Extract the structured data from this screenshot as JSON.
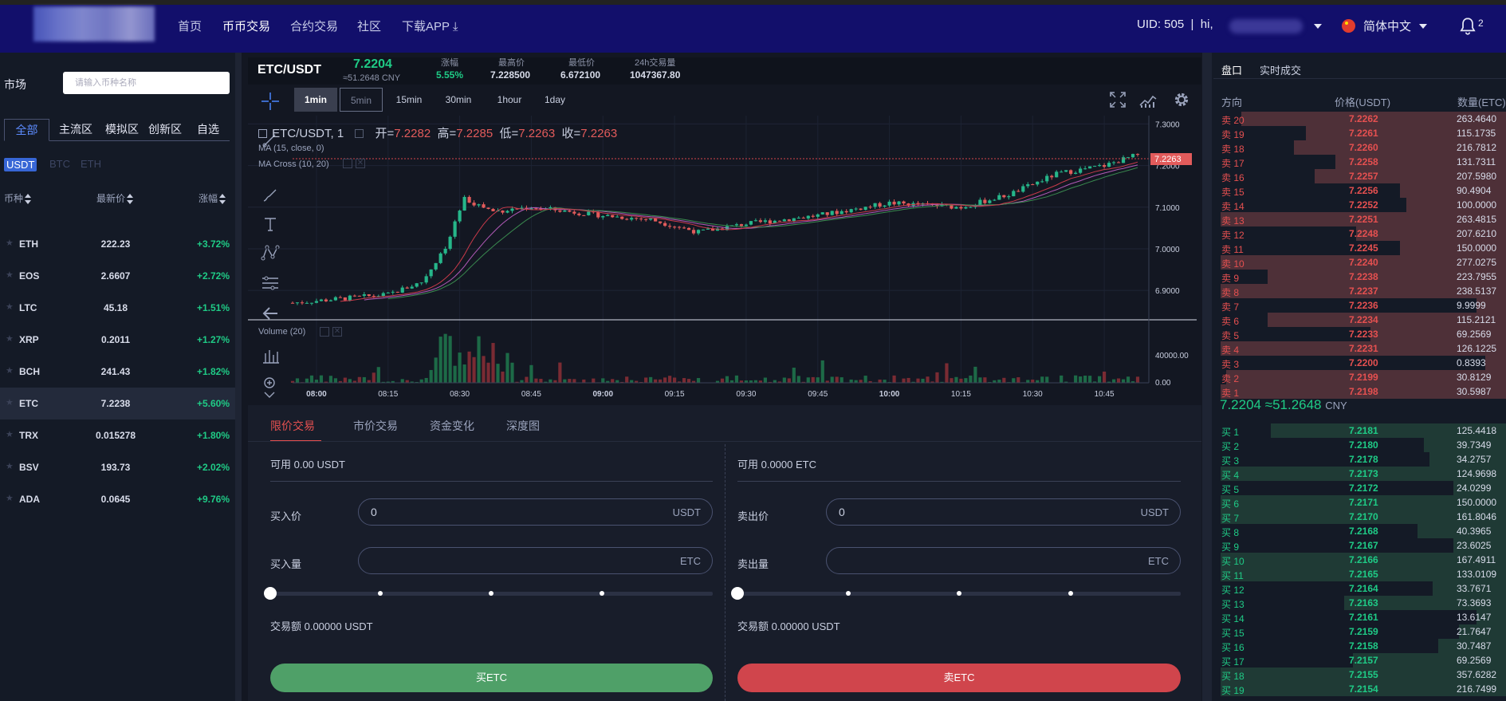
{
  "nav": {
    "links": [
      "首页",
      "币币交易",
      "合约交易",
      "社区",
      "下载APP"
    ],
    "uid_text": "UID: 505",
    "greeting": "hi,",
    "language": "简体中文",
    "notification_count": "2"
  },
  "market": {
    "label": "市场",
    "search_placeholder": "请输入币种名称",
    "zones": [
      "全部",
      "主流区",
      "模拟区",
      "创新区",
      "自选"
    ],
    "quotes": [
      "USDT",
      "BTC",
      "ETH"
    ],
    "col_coin": "币种",
    "col_price": "最新价",
    "col_change": "涨幅",
    "coins": [
      {
        "name": "ETH",
        "price": "222.23",
        "change": "+3.72%"
      },
      {
        "name": "EOS",
        "price": "2.6607",
        "change": "+2.72%"
      },
      {
        "name": "LTC",
        "price": "45.18",
        "change": "+1.51%"
      },
      {
        "name": "XRP",
        "price": "0.2011",
        "change": "+1.27%"
      },
      {
        "name": "BCH",
        "price": "241.43",
        "change": "+1.82%"
      },
      {
        "name": "ETC",
        "price": "7.2238",
        "change": "+5.60%"
      },
      {
        "name": "TRX",
        "price": "0.015278",
        "change": "+1.80%"
      },
      {
        "name": "BSV",
        "price": "193.73",
        "change": "+2.02%"
      },
      {
        "name": "ADA",
        "price": "0.0645",
        "change": "+9.76%"
      }
    ]
  },
  "ticker": {
    "pair": "ETC/USDT",
    "last": "7.2204",
    "cny": "≈51.2648 CNY",
    "stats": [
      {
        "label": "涨幅",
        "value": "5.55%"
      },
      {
        "label": "最高价",
        "value": "7.228500"
      },
      {
        "label": "最低价",
        "value": "6.672100"
      },
      {
        "label": "24h交易量",
        "value": "1047367.80"
      }
    ]
  },
  "chart": {
    "timeframes": [
      "1min",
      "5min",
      "15min",
      "30min",
      "1hour",
      "1day"
    ],
    "legend_symbol": "ETC/USDT, 1",
    "ohlc": {
      "o_label": "开=",
      "o": "7.2282",
      "h_label": "高=",
      "h": "7.2285",
      "l_label": "低=",
      "l": "7.2263",
      "c_label": "收=",
      "c": "7.2263"
    },
    "ma_label": "MA (15, close, 0)",
    "macross_label": "MA Cross (10, 20)",
    "volume_label": "Volume (20)",
    "current_price_tag": "7.2263",
    "price_axis": [
      "7.3000",
      "7.2000",
      "7.1000",
      "7.0000",
      "6.9000"
    ],
    "volume_axis": [
      "40000.00",
      "0.00"
    ],
    "time_axis": [
      "08:00",
      "08:15",
      "08:30",
      "08:45",
      "09:00",
      "09:15",
      "09:30",
      "09:45",
      "10:00",
      "10:15",
      "10:30",
      "10:45"
    ],
    "up_color": "#26b68a",
    "down_color": "#e25b5b"
  },
  "chart_data": {
    "type": "candlestick",
    "x_label": "",
    "y_label": "",
    "ylim": [
      6.86,
      7.32
    ],
    "x_range": [
      "07:55",
      "10:52"
    ],
    "interval": "1min",
    "price_trend": [
      [
        "07:55",
        6.87
      ],
      [
        "08:05",
        6.88
      ],
      [
        "08:15",
        6.89
      ],
      [
        "08:22",
        6.92
      ],
      [
        "08:27",
        7.0
      ],
      [
        "08:31",
        7.12
      ],
      [
        "08:37",
        7.09
      ],
      [
        "08:45",
        7.1
      ],
      [
        "09:00",
        7.08
      ],
      [
        "09:10",
        7.07
      ],
      [
        "09:20",
        7.04
      ],
      [
        "09:30",
        7.06
      ],
      [
        "09:45",
        7.08
      ],
      [
        "10:00",
        7.11
      ],
      [
        "10:15",
        7.1
      ],
      [
        "10:25",
        7.13
      ],
      [
        "10:35",
        7.18
      ],
      [
        "10:45",
        7.2
      ],
      [
        "10:52",
        7.2263
      ]
    ]
  },
  "form": {
    "tabs": [
      "限价交易",
      "市价交易",
      "资金变化",
      "深度图"
    ],
    "buy": {
      "available": "可用 0.00 USDT",
      "price_label": "买入价",
      "price_value": "0",
      "price_unit": "USDT",
      "amount_label": "买入量",
      "amount_unit": "ETC",
      "total": "交易额 0.00000 USDT",
      "button": "买ETC"
    },
    "sell": {
      "available": "可用 0.0000 ETC",
      "price_label": "卖出价",
      "price_value": "0",
      "price_unit": "USDT",
      "amount_label": "卖出量",
      "amount_unit": "ETC",
      "total": "交易额 0.00000 USDT",
      "button": "卖ETC"
    }
  },
  "orderbook": {
    "tabs": [
      "盘口",
      "实时成交"
    ],
    "col_dir": "方向",
    "col_price": "价格(USDT)",
    "col_qty": "数量(ETC)",
    "asks": [
      {
        "label": "卖 20",
        "price": "7.2262",
        "qty": "263.4640",
        "depth": 0.9
      },
      {
        "label": "卖 19",
        "price": "7.2261",
        "qty": "115.1735",
        "depth": 0.68
      },
      {
        "label": "卖 18",
        "price": "7.2260",
        "qty": "216.7812",
        "depth": 0.72
      },
      {
        "label": "卖 17",
        "price": "7.2258",
        "qty": "131.7311",
        "depth": 0.58
      },
      {
        "label": "卖 16",
        "price": "7.2257",
        "qty": "207.5980",
        "depth": 0.65
      },
      {
        "label": "卖 15",
        "price": "7.2256",
        "qty": "90.4904",
        "depth": 0.36
      },
      {
        "label": "卖 14",
        "price": "7.2252",
        "qty": "100.0000",
        "depth": 0.34
      },
      {
        "label": "卖 13",
        "price": "7.2251",
        "qty": "263.4815",
        "depth": 0.97
      },
      {
        "label": "卖 12",
        "price": "7.2248",
        "qty": "207.6210",
        "depth": 0.51
      },
      {
        "label": "卖 11",
        "price": "7.2245",
        "qty": "150.0000",
        "depth": 0.36
      },
      {
        "label": "卖 10",
        "price": "7.2240",
        "qty": "277.0275",
        "depth": 0.97
      },
      {
        "label": "卖 9",
        "price": "7.2238",
        "qty": "223.7955",
        "depth": 0.81
      },
      {
        "label": "卖 8",
        "price": "7.2237",
        "qty": "238.5137",
        "depth": 0.97
      },
      {
        "label": "卖 7",
        "price": "7.2236",
        "qty": "9.9999",
        "depth": 0.1
      },
      {
        "label": "卖 6",
        "price": "7.2234",
        "qty": "115.2121",
        "depth": 0.81
      },
      {
        "label": "卖 5",
        "price": "7.2233",
        "qty": "69.2569",
        "depth": 0.46
      },
      {
        "label": "卖 4",
        "price": "7.2231",
        "qty": "126.1225",
        "depth": 0.97
      },
      {
        "label": "卖 3",
        "price": "7.2200",
        "qty": "0.8393",
        "depth": 0.07
      },
      {
        "label": "卖 2",
        "price": "7.2199",
        "qty": "30.8129",
        "depth": 0.95
      },
      {
        "label": "卖 1",
        "price": "7.2198",
        "qty": "30.5987",
        "depth": 0.97
      }
    ],
    "mid_price": "7.2204",
    "mid_cny": "≈51.2648",
    "mid_cny_unit": "CNY",
    "bids": [
      {
        "label": "买 1",
        "price": "7.2181",
        "qty": "125.4418",
        "depth": 0.8
      },
      {
        "label": "买 2",
        "price": "7.2180",
        "qty": "39.7349",
        "depth": 0.28
      },
      {
        "label": "买 3",
        "price": "7.2178",
        "qty": "34.2757",
        "depth": 0.26
      },
      {
        "label": "买 4",
        "price": "7.2173",
        "qty": "124.9698",
        "depth": 0.97
      },
      {
        "label": "买 5",
        "price": "7.2172",
        "qty": "24.0299",
        "depth": 0.18
      },
      {
        "label": "买 6",
        "price": "7.2171",
        "qty": "150.0000",
        "depth": 0.97
      },
      {
        "label": "买 7",
        "price": "7.2170",
        "qty": "161.8046",
        "depth": 0.97
      },
      {
        "label": "买 8",
        "price": "7.2168",
        "qty": "40.3965",
        "depth": 0.3
      },
      {
        "label": "买 9",
        "price": "7.2167",
        "qty": "23.6025",
        "depth": 0.18
      },
      {
        "label": "买 10",
        "price": "7.2166",
        "qty": "167.4911",
        "depth": 0.97
      },
      {
        "label": "买 11",
        "price": "7.2165",
        "qty": "133.0109",
        "depth": 0.97
      },
      {
        "label": "买 12",
        "price": "7.2164",
        "qty": "33.7671",
        "depth": 0.25
      },
      {
        "label": "买 13",
        "price": "7.2163",
        "qty": "73.3693",
        "depth": 0.55
      },
      {
        "label": "买 14",
        "price": "7.2161",
        "qty": "13.6147",
        "depth": 0.1
      },
      {
        "label": "买 15",
        "price": "7.2159",
        "qty": "21.7647",
        "depth": 0.16
      },
      {
        "label": "买 16",
        "price": "7.2158",
        "qty": "30.7487",
        "depth": 0.23
      },
      {
        "label": "买 17",
        "price": "7.2157",
        "qty": "69.2569",
        "depth": 0.52
      },
      {
        "label": "买 18",
        "price": "7.2155",
        "qty": "357.6282",
        "depth": 0.97
      },
      {
        "label": "买 19",
        "price": "7.2154",
        "qty": "216.7499",
        "depth": 0.97
      }
    ]
  }
}
